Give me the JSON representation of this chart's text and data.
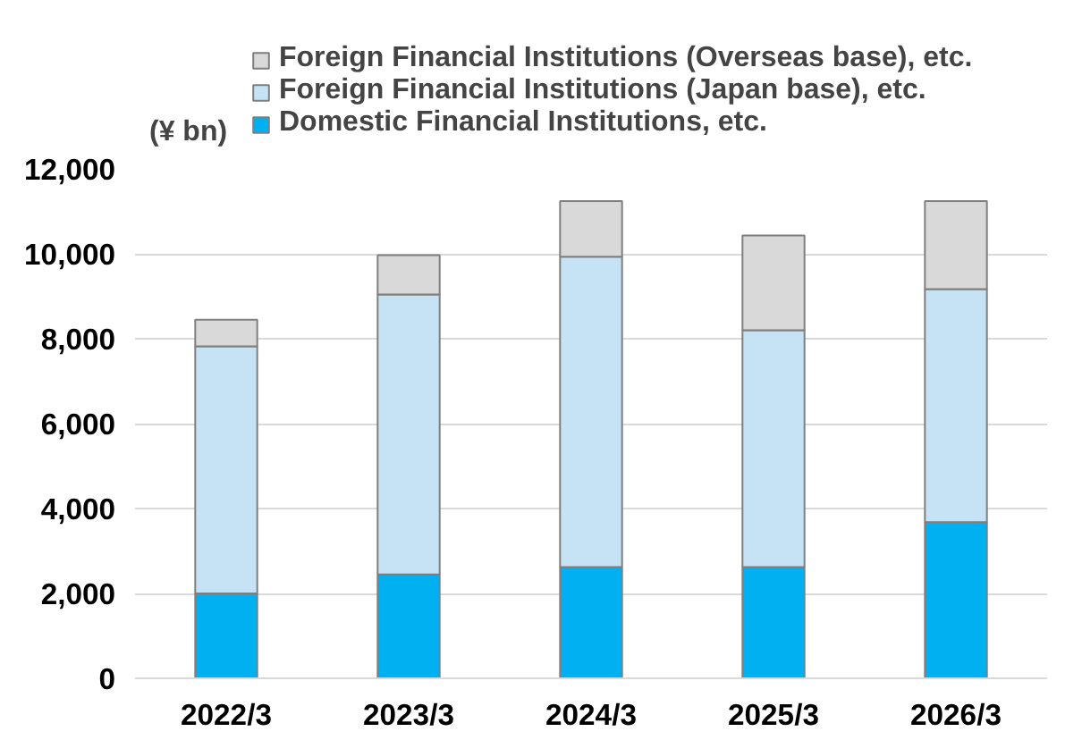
{
  "chart_data": {
    "type": "bar",
    "stacked": true,
    "ylabel": "(¥ bn)",
    "categories": [
      "2022/3",
      "2023/3",
      "2024/3",
      "2025/3",
      "2026/3"
    ],
    "series": [
      {
        "name": "Domestic Financial Institutions, etc.",
        "color": "#00b0f0",
        "values": [
          2000,
          2450,
          2620,
          2620,
          3680
        ]
      },
      {
        "name": "Foreign Financial Institutions (Japan base), etc.",
        "color": "#c5e3f5",
        "values": [
          5820,
          6590,
          7310,
          5580,
          5490
        ]
      },
      {
        "name": "Foreign Financial Institutions (Overseas base), etc.",
        "color": "#d9d9d9",
        "values": [
          630,
          930,
          1310,
          2230,
          2070
        ]
      }
    ],
    "ylim": [
      0,
      12000
    ],
    "yticks": [
      {
        "value": 0,
        "label": "0"
      },
      {
        "value": 2000,
        "label": "2,000"
      },
      {
        "value": 4000,
        "label": "4,000"
      },
      {
        "value": 6000,
        "label": "6,000"
      },
      {
        "value": 8000,
        "label": "8,000"
      },
      {
        "value": 10000,
        "label": "10,000"
      },
      {
        "value": 12000,
        "label": "12,000"
      }
    ],
    "grid": "y",
    "legend": "top"
  }
}
